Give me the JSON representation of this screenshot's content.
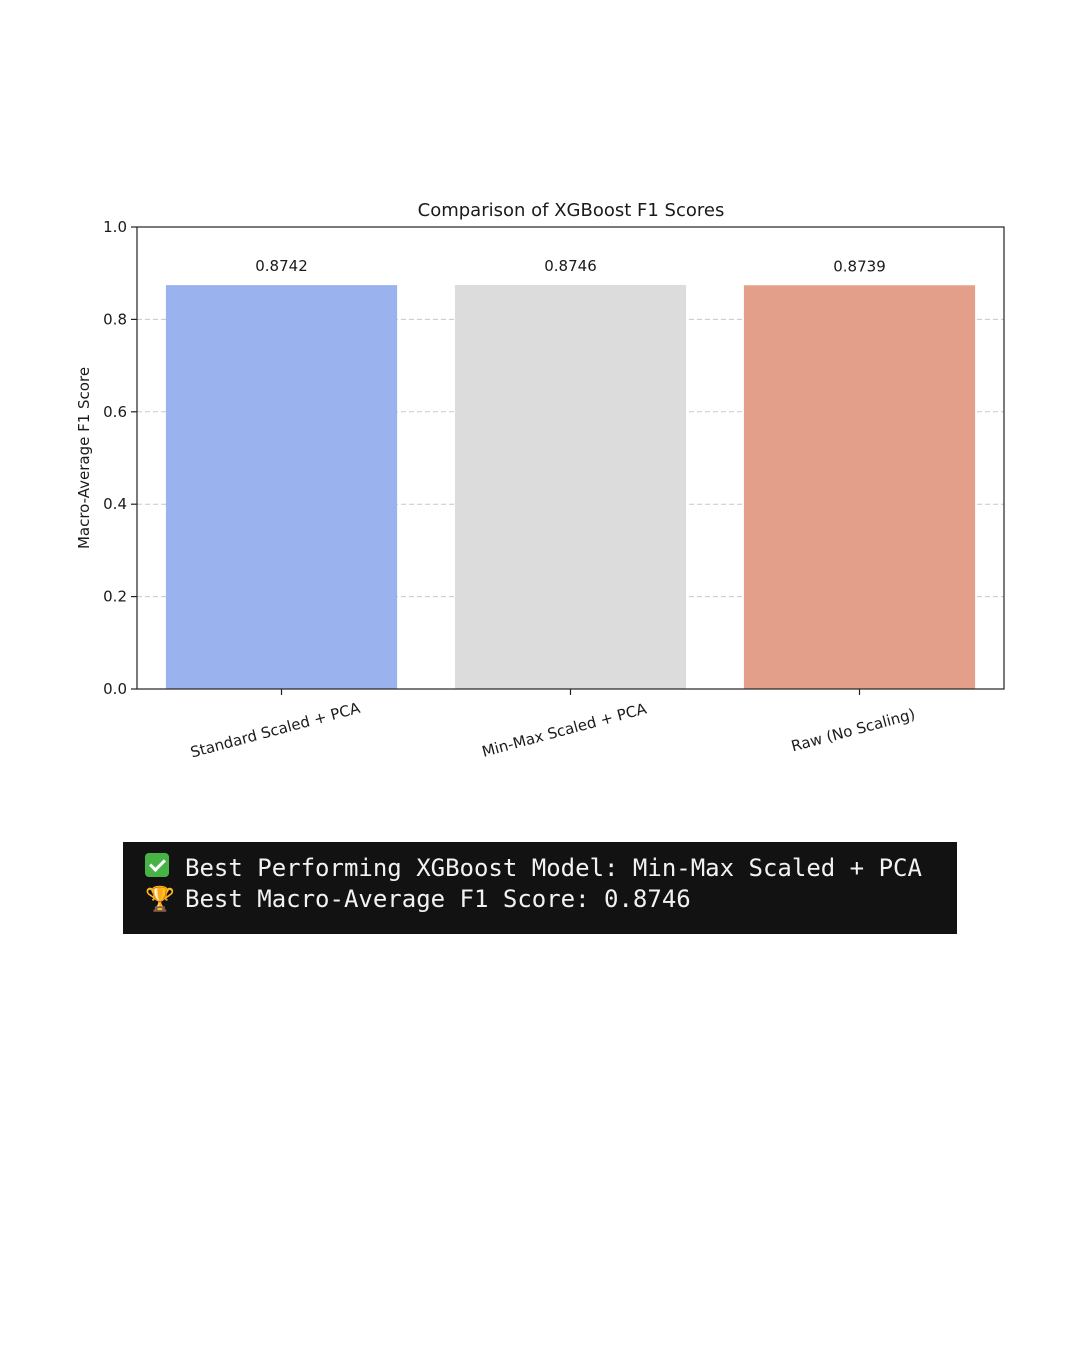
{
  "chart_data": {
    "type": "bar",
    "title": "Comparison of XGBoost F1 Scores",
    "xlabel": "",
    "ylabel": "Macro-Average F1 Score",
    "categories": [
      "Standard Scaled + PCA",
      "Min-Max Scaled + PCA",
      "Raw (No Scaling)"
    ],
    "values": [
      0.8742,
      0.8746,
      0.8739
    ],
    "data_labels": [
      "0.8742",
      "0.8746",
      "0.8739"
    ],
    "bar_colors": [
      "#9ab3ee",
      "#dcdcdc",
      "#e39f89"
    ],
    "ylim": [
      0,
      1.0
    ],
    "yticks": [
      0.0,
      0.2,
      0.4,
      0.6,
      0.8,
      1.0
    ],
    "ytick_labels": [
      "0.0",
      "0.2",
      "0.4",
      "0.6",
      "0.8",
      "1.0"
    ],
    "grid": "y-dashed",
    "legend": "none"
  },
  "console": {
    "line1_emoji": "check-icon",
    "line1_text": "Best Performing XGBoost Model: Min-Max Scaled + PCA",
    "line2_emoji": "🏆",
    "line2_text": "Best Macro-Average F1 Score: 0.8746",
    "background": "#121212",
    "text_color": "#f2f2f2"
  }
}
